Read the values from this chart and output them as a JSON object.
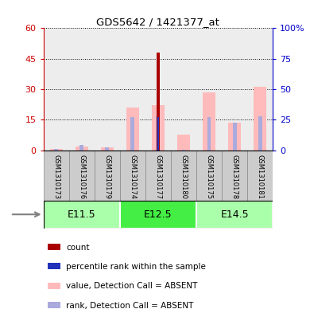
{
  "title": "GDS5642 / 1421377_at",
  "samples": [
    "GSM1310173",
    "GSM1310176",
    "GSM1310179",
    "GSM1310174",
    "GSM1310177",
    "GSM1310180",
    "GSM1310175",
    "GSM1310178",
    "GSM1310181"
  ],
  "age_groups": [
    {
      "label": "E11.5",
      "start": 0,
      "end": 3
    },
    {
      "label": "E12.5",
      "start": 3,
      "end": 6
    },
    {
      "label": "E14.5",
      "start": 6,
      "end": 9
    }
  ],
  "left_ylim": [
    0,
    60
  ],
  "right_ylim": [
    0,
    100
  ],
  "left_yticks": [
    0,
    15,
    30,
    45,
    60
  ],
  "right_yticks": [
    0,
    25,
    50,
    75,
    100
  ],
  "right_yticklabels": [
    "0",
    "25",
    "50",
    "75",
    "100%"
  ],
  "left_yticklabels": [
    "0",
    "15",
    "30",
    "45",
    "60"
  ],
  "count_values": [
    0,
    0,
    0,
    0,
    48,
    0,
    0,
    0,
    0
  ],
  "percentile_values": [
    0,
    0,
    0,
    0,
    27,
    0,
    0,
    0,
    0
  ],
  "absent_value": [
    0.5,
    2.0,
    1.5,
    21.0,
    22.0,
    7.5,
    28.5,
    13.5,
    31.0
  ],
  "absent_rank": [
    1.0,
    4.5,
    2.5,
    27.0,
    27.5,
    0.5,
    27.0,
    22.5,
    27.5
  ],
  "count_color": "#aa0000",
  "percentile_color": "#2233bb",
  "absent_value_color": "#ffbbbb",
  "absent_rank_color": "#aaaadd",
  "left_axis_color": "#cc0000",
  "right_axis_color": "#0000cc",
  "fig_bg_color": "#ffffff",
  "legend_items": [
    {
      "label": "count",
      "color": "#aa0000"
    },
    {
      "label": "percentile rank within the sample",
      "color": "#2233bb"
    },
    {
      "label": "value, Detection Call = ABSENT",
      "color": "#ffbbbb"
    },
    {
      "label": "rank, Detection Call = ABSENT",
      "color": "#aaaadd"
    }
  ],
  "age_group_color_light": "#aaffaa",
  "age_group_color_dark": "#44ee44",
  "sample_bg_color": "#cccccc",
  "sample_border_color": "#888888"
}
